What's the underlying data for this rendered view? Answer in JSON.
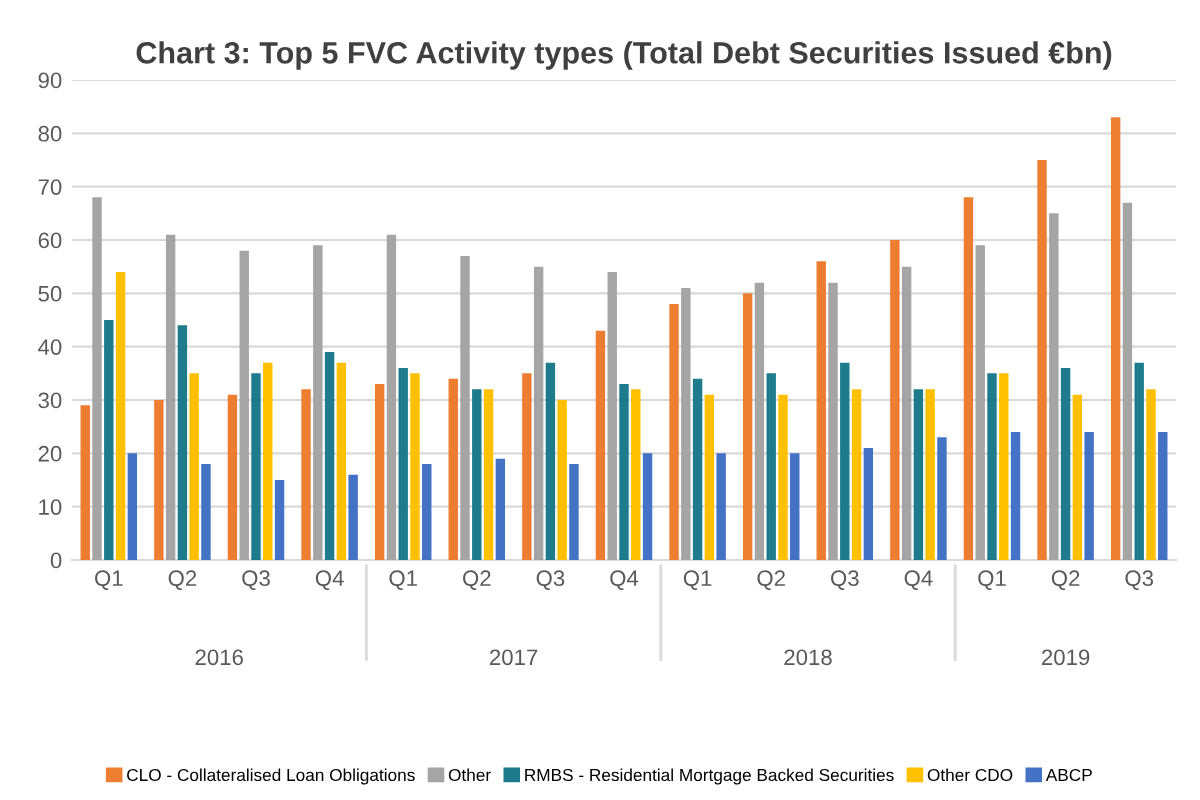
{
  "chart_data": {
    "type": "bar",
    "title": "Chart 3: Top 5 FVC Activity types (Total Debt Securities Issued €bn)",
    "categories": [
      "Q1",
      "Q2",
      "Q3",
      "Q4",
      "Q1",
      "Q2",
      "Q3",
      "Q4",
      "Q1",
      "Q2",
      "Q3",
      "Q4",
      "Q1",
      "Q2",
      "Q3"
    ],
    "series": [
      {
        "name": "CLO - Collateralised Loan Obligations",
        "color": "#ed7d31",
        "values": [
          29,
          30,
          31,
          32,
          33,
          34,
          35,
          43,
          48,
          50,
          56,
          60,
          68,
          75,
          83
        ]
      },
      {
        "name": "Other",
        "color": "#a5a5a5",
        "values": [
          68,
          61,
          58,
          59,
          61,
          57,
          55,
          54,
          51,
          52,
          52,
          55,
          59,
          65,
          67
        ]
      },
      {
        "name": "RMBS - Residential Mortgage Backed Securities",
        "color": "#1e7b8c",
        "values": [
          45,
          44,
          35,
          39,
          36,
          32,
          37,
          33,
          34,
          35,
          37,
          32,
          35,
          36,
          37
        ]
      },
      {
        "name": "Other CDO",
        "color": "#ffc000",
        "values": [
          54,
          35,
          37,
          37,
          35,
          32,
          30,
          32,
          31,
          31,
          32,
          32,
          35,
          31,
          32
        ]
      },
      {
        "name": "ABCP",
        "color": "#4472c4",
        "values": [
          20,
          18,
          15,
          16,
          18,
          19,
          18,
          20,
          20,
          20,
          21,
          23,
          24,
          24,
          24
        ]
      }
    ],
    "annotations": [
      "2016",
      "2017",
      "2018",
      "2019"
    ],
    "ylim": [
      0,
      90
    ],
    "yticks": [
      0,
      10,
      20,
      30,
      40,
      50,
      60,
      70,
      80,
      90
    ],
    "grid": "y",
    "legend": "bottom"
  }
}
